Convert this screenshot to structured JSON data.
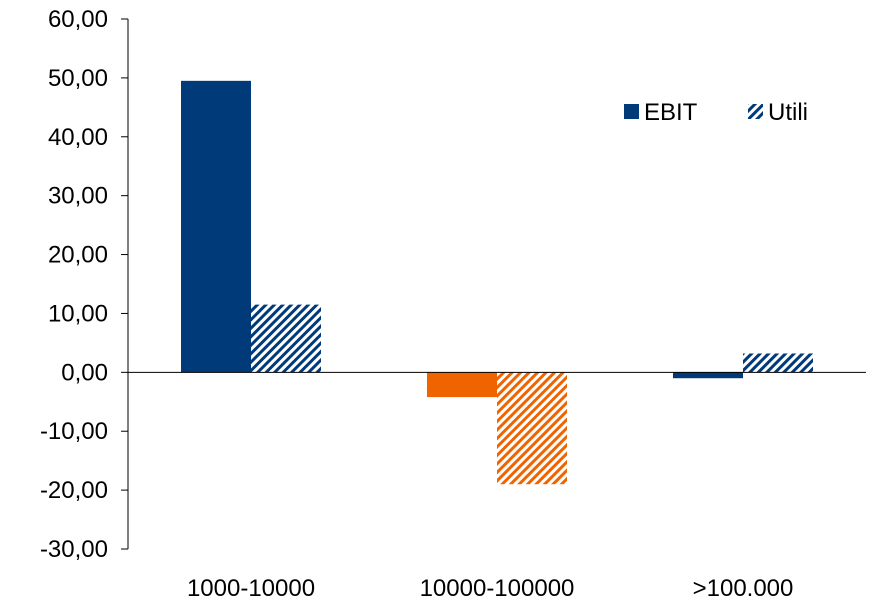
{
  "chart_data": {
    "type": "bar",
    "title": "",
    "xlabel": "",
    "ylabel": "",
    "categories": [
      "1000-10000",
      "10000-100000",
      ">100.000"
    ],
    "series": [
      {
        "name": "EBIT",
        "values": [
          49.5,
          -4.2,
          -1.0
        ],
        "fill": "solid"
      },
      {
        "name": "Utili",
        "values": [
          11.5,
          -19.0,
          3.2
        ],
        "fill": "hatched"
      }
    ],
    "bar_colors": [
      {
        "category": "1000-10000",
        "color": "#003A78"
      },
      {
        "category": "10000-100000",
        "color": "#F06400"
      },
      {
        "category": ">100.000",
        "color": "#003A78"
      }
    ],
    "ylim": [
      -30,
      60
    ],
    "yticks": [
      60,
      50,
      40,
      30,
      20,
      10,
      0,
      -10,
      -20,
      -30
    ],
    "ytick_labels": [
      "60,00",
      "50,00",
      "40,00",
      "30,00",
      "20,00",
      "10,00",
      "0,00",
      "-10,00",
      "-20,00",
      "-30,00"
    ],
    "grid": false,
    "legend_position": "top-right",
    "legend_color": "#003A78"
  }
}
